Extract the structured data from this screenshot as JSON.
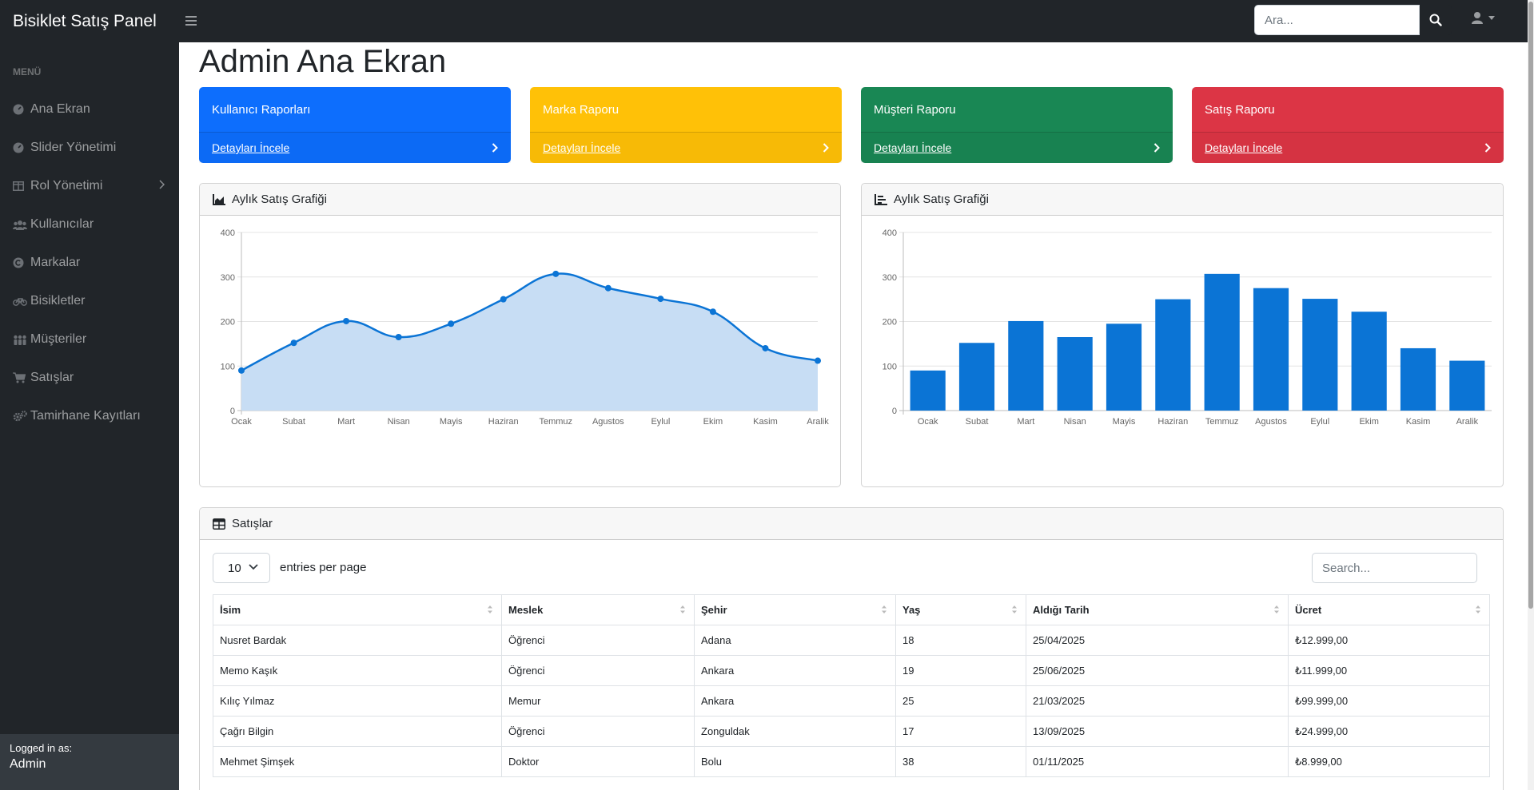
{
  "brand": "Bisiklet Satış Panel",
  "navbar": {
    "search_placeholder": "Ara..."
  },
  "sidebar": {
    "heading": "MENÜ",
    "items": [
      {
        "label": "Ana Ekran",
        "icon": "gauge-icon"
      },
      {
        "label": "Slider Yönetimi",
        "icon": "gauge-icon"
      },
      {
        "label": "Rol Yönetimi",
        "icon": "columns-icon"
      },
      {
        "label": "Kullanıcılar",
        "icon": "users-icon"
      },
      {
        "label": "Markalar",
        "icon": "copyright-icon"
      },
      {
        "label": "Bisikletler",
        "icon": "bicycle-icon"
      },
      {
        "label": "Müşteriler",
        "icon": "people-group-icon"
      },
      {
        "label": "Satışlar",
        "icon": "cart-icon"
      },
      {
        "label": "Tamirhane Kayıtları",
        "icon": "gears-icon"
      }
    ],
    "footer": {
      "logged_label": "Logged in as:",
      "user": "Admin"
    }
  },
  "page_title": "Admin Ana Ekran",
  "cards": [
    {
      "title": "Kullanıcı Raporları",
      "link": "Detayları İncele",
      "color": "#0d6efd"
    },
    {
      "title": "Marka Raporu",
      "link": "Detayları İncele",
      "color": "#ffc107"
    },
    {
      "title": "Müşteri Raporu",
      "link": "Detayları İncele",
      "color": "#198754"
    },
    {
      "title": "Satış Raporu",
      "link": "Detayları İncele",
      "color": "#dc3545"
    }
  ],
  "chart_panels": [
    {
      "title": "Aylık Satış Grafiği"
    },
    {
      "title": "Aylık Satış Grafiği"
    }
  ],
  "chart_data": [
    {
      "type": "area",
      "categories": [
        "Ocak",
        "Subat",
        "Mart",
        "Nisan",
        "Mayis",
        "Haziran",
        "Temmuz",
        "Agustos",
        "Eylul",
        "Ekim",
        "Kasim",
        "Aralik"
      ],
      "values": [
        90,
        152,
        201,
        165,
        195,
        250,
        307,
        275,
        251,
        222,
        140,
        112
      ],
      "ylim": [
        0,
        400
      ],
      "yticks": [
        0,
        100,
        200,
        300,
        400
      ],
      "grid": true,
      "line_color": "#0b74d5",
      "fill_color": "#c7ddf4"
    },
    {
      "type": "bar",
      "categories": [
        "Ocak",
        "Subat",
        "Mart",
        "Nisan",
        "Mayis",
        "Haziran",
        "Temmuz",
        "Agustos",
        "Eylul",
        "Ekim",
        "Kasim",
        "Aralik"
      ],
      "values": [
        90,
        152,
        201,
        165,
        195,
        250,
        307,
        275,
        251,
        222,
        140,
        112
      ],
      "ylim": [
        0,
        400
      ],
      "yticks": [
        0,
        100,
        200,
        300,
        400
      ],
      "grid": true,
      "bar_color": "#0b74d5"
    }
  ],
  "table": {
    "title": "Satışlar",
    "entries_value": "10",
    "entries_label": "entries per page",
    "search_placeholder": "Search...",
    "columns": [
      "İsim",
      "Meslek",
      "Şehir",
      "Yaş",
      "Aldığı Tarih",
      "Ücret"
    ],
    "rows": [
      [
        "Nusret Bardak",
        "Öğrenci",
        "Adana",
        "18",
        "25/04/2025",
        "₺12.999,00"
      ],
      [
        "Memo Kaşık",
        "Öğrenci",
        "Ankara",
        "19",
        "25/06/2025",
        "₺11.999,00"
      ],
      [
        "Kılıç Yılmaz",
        "Memur",
        "Ankara",
        "25",
        "21/03/2025",
        "₺99.999,00"
      ],
      [
        "Çağrı Bilgin",
        "Öğrenci",
        "Zonguldak",
        "17",
        "13/09/2025",
        "₺24.999,00"
      ],
      [
        "Mehmet Şimşek",
        "Doktor",
        "Bolu",
        "38",
        "01/11/2025",
        "₺8.999,00"
      ]
    ]
  }
}
